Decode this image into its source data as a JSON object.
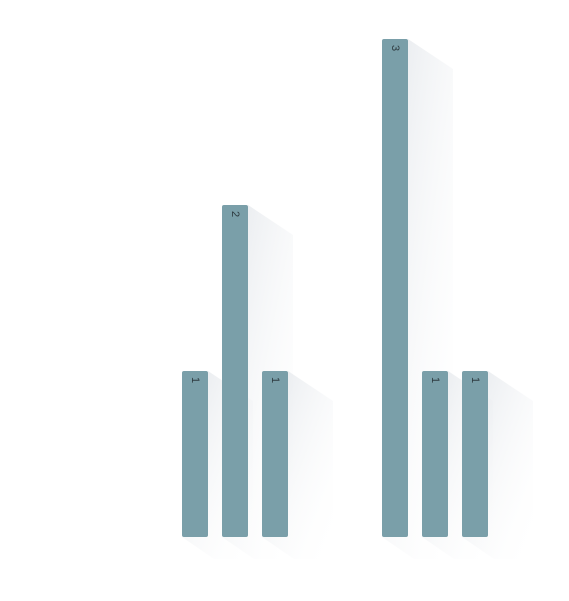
{
  "chart_data": {
    "type": "bar",
    "categories": [
      null,
      null,
      null,
      null,
      null,
      null,
      null,
      null
    ],
    "values": [
      1,
      2,
      1,
      null,
      null,
      3,
      1,
      1
    ],
    "color": "#7a9fa9",
    "ylim": [
      0,
      3
    ]
  }
}
